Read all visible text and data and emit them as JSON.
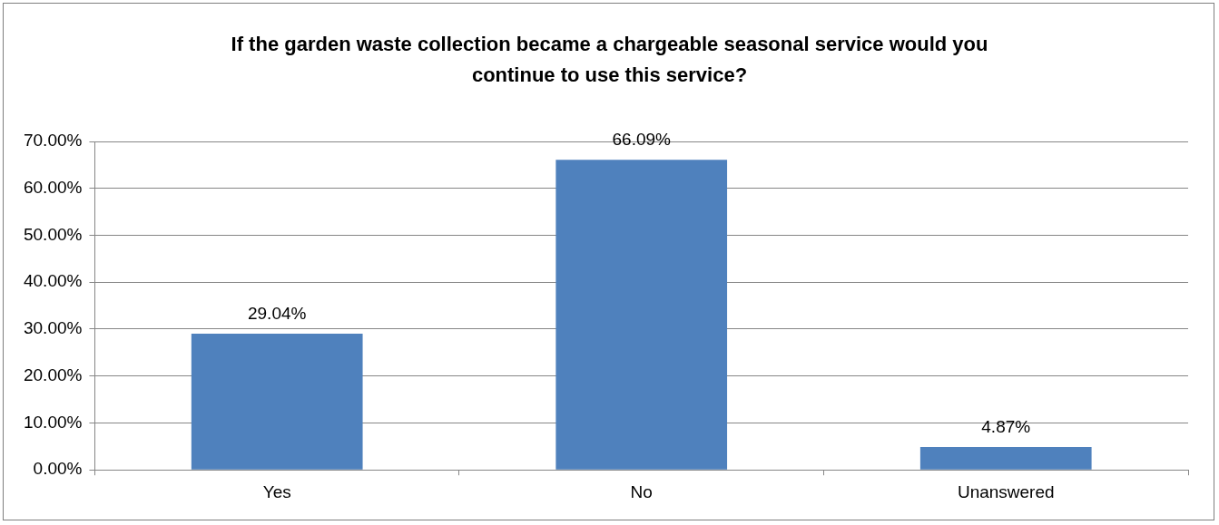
{
  "chart_data": {
    "type": "bar",
    "title": "If the garden waste collection became a chargeable seasonal service would you continue to use this service?",
    "categories": [
      "Yes",
      "No",
      "Unanswered"
    ],
    "values": [
      29.04,
      66.09,
      4.87
    ],
    "value_labels": [
      "29.04%",
      "66.09%",
      "4.87%"
    ],
    "color": "#4f81bd",
    "ylim": [
      0,
      70
    ],
    "yticks": [
      {
        "value": 0,
        "label": "0.00%"
      },
      {
        "value": 10,
        "label": "10.00%"
      },
      {
        "value": 20,
        "label": "20.00%"
      },
      {
        "value": 30,
        "label": "30.00%"
      },
      {
        "value": 40,
        "label": "40.00%"
      },
      {
        "value": 50,
        "label": "50.00%"
      },
      {
        "value": 60,
        "label": "60.00%"
      },
      {
        "value": 70,
        "label": "70.00%"
      }
    ],
    "grid": "y",
    "legend": false
  }
}
